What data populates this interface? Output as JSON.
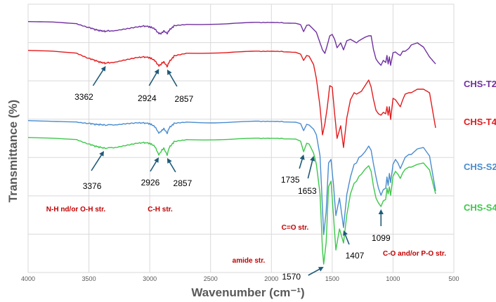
{
  "chart_data": {
    "type": "line",
    "title": "",
    "xlabel": "Wavenumber (cm⁻¹)",
    "ylabel": "Transmittance (%)",
    "xlim": [
      4000,
      500
    ],
    "x_ticks": [
      "4000",
      "3500",
      "3000",
      "2500",
      "2000",
      "1500",
      "1000",
      "500"
    ],
    "y_tick_values": false,
    "grid": true,
    "legend_position": "right",
    "colors": {
      "CHS-T2": "#7030a0",
      "CHS-T4": "#e31a1c",
      "CHS-S2": "#4a8ccf",
      "CHS-S4": "#3cc84a",
      "annotation": "#1f5a78",
      "group_label": "#c00000"
    },
    "series": [
      {
        "name": "CHS-T2",
        "offset": 31,
        "x": [
          4000,
          3800,
          3600,
          3500,
          3450,
          3400,
          3362,
          3300,
          3200,
          3100,
          3050,
          3000,
          2960,
          2924,
          2900,
          2885,
          2857,
          2840,
          2800,
          2700,
          2500,
          2300,
          2100,
          2000,
          1900,
          1800,
          1760,
          1735,
          1710,
          1690,
          1653,
          1630,
          1600,
          1580,
          1560,
          1540,
          1520,
          1500,
          1480,
          1460,
          1430,
          1407,
          1380,
          1350,
          1320,
          1300,
          1280,
          1260,
          1230,
          1200,
          1180,
          1160,
          1140,
          1120,
          1099,
          1080,
          1060,
          1050,
          1040,
          1030,
          1020,
          1000,
          980,
          960,
          940,
          920,
          900,
          870,
          850,
          800,
          750,
          700,
          650
        ],
        "values": [
          0,
          0.5,
          3,
          8,
          11,
          13,
          13.5,
          12.5,
          10,
          7.5,
          6,
          7,
          10,
          17,
          16,
          13,
          17,
          12,
          6,
          4,
          2.5,
          2,
          1.8,
          1.7,
          1.8,
          2.2,
          4,
          14,
          5,
          4.5,
          11,
          15,
          30,
          40,
          45,
          33,
          20,
          18,
          25,
          37,
          30,
          40,
          27,
          25,
          28,
          30,
          27,
          25,
          22,
          20,
          20,
          40,
          53,
          58,
          62,
          55,
          58,
          48,
          60,
          50,
          62,
          44,
          43,
          46,
          48,
          42,
          42,
          38,
          33,
          30,
          36,
          50,
          60
        ]
      },
      {
        "name": "CHS-T4",
        "offset": 72,
        "x": [
          4000,
          3800,
          3600,
          3500,
          3450,
          3400,
          3362,
          3300,
          3200,
          3100,
          3050,
          3000,
          2960,
          2924,
          2900,
          2885,
          2857,
          2840,
          2800,
          2700,
          2500,
          2300,
          2100,
          2000,
          1900,
          1800,
          1760,
          1735,
          1710,
          1690,
          1653,
          1630,
          1600,
          1580,
          1560,
          1540,
          1520,
          1500,
          1480,
          1460,
          1430,
          1407,
          1380,
          1350,
          1320,
          1300,
          1280,
          1260,
          1230,
          1200,
          1180,
          1160,
          1140,
          1120,
          1099,
          1080,
          1060,
          1050,
          1040,
          1030,
          1020,
          1000,
          980,
          960,
          940,
          920,
          900,
          870,
          850,
          800,
          750,
          700,
          650
        ],
        "values": [
          0,
          1,
          4,
          11,
          14,
          17,
          18,
          16.5,
          13,
          10,
          9,
          10,
          14,
          22,
          18,
          16,
          23,
          16,
          8,
          4,
          2.5,
          2,
          1.8,
          1.7,
          1.8,
          2.5,
          5,
          14,
          7,
          8,
          20,
          40,
          80,
          120,
          104,
          80,
          50,
          52,
          90,
          125,
          107,
          138,
          96,
          70,
          60,
          62,
          60,
          58,
          50,
          42,
          52,
          70,
          85,
          90,
          92,
          88,
          90,
          80,
          92,
          80,
          98,
          68,
          70,
          75,
          80,
          70,
          62,
          60,
          60,
          55,
          55,
          60,
          110
        ]
      },
      {
        "name": "CHS-S2",
        "offset": 172,
        "x": [
          4000,
          3800,
          3600,
          3500,
          3450,
          3400,
          3376,
          3300,
          3200,
          3100,
          3050,
          3000,
          2960,
          2926,
          2900,
          2885,
          2857,
          2840,
          2800,
          2700,
          2500,
          2300,
          2100,
          2000,
          1900,
          1800,
          1760,
          1735,
          1710,
          1690,
          1653,
          1630,
          1600,
          1580,
          1570,
          1550,
          1530,
          1510,
          1490,
          1470,
          1440,
          1407,
          1380,
          1350,
          1320,
          1300,
          1280,
          1260,
          1230,
          1200,
          1180,
          1160,
          1140,
          1120,
          1099,
          1080,
          1060,
          1050,
          1040,
          1030,
          1020,
          1000,
          980,
          960,
          940,
          920,
          900,
          870,
          850,
          800,
          750,
          700,
          650
        ],
        "values": [
          0,
          1,
          2,
          3.5,
          5,
          5.5,
          6,
          5.5,
          4,
          3,
          3,
          4,
          8,
          17,
          14,
          11,
          18,
          10,
          4,
          2,
          1.8,
          1.6,
          1.5,
          1.5,
          1.6,
          2,
          4,
          14,
          5,
          6,
          12,
          20,
          50,
          125,
          162,
          130,
          60,
          55,
          90,
          135,
          110,
          152,
          105,
          80,
          62,
          60,
          52,
          50,
          44,
          36,
          42,
          62,
          80,
          96,
          106,
          98,
          96,
          80,
          92,
          75,
          88,
          62,
          55,
          60,
          68,
          60,
          52,
          48,
          48,
          40,
          38,
          50,
          100
        ]
      },
      {
        "name": "CHS-S4",
        "offset": 196,
        "x": [
          4000,
          3800,
          3600,
          3500,
          3450,
          3400,
          3376,
          3300,
          3200,
          3100,
          3050,
          3000,
          2960,
          2926,
          2900,
          2885,
          2857,
          2840,
          2800,
          2700,
          2500,
          2300,
          2100,
          2000,
          1900,
          1800,
          1760,
          1735,
          1710,
          1690,
          1653,
          1630,
          1600,
          1580,
          1570,
          1550,
          1530,
          1510,
          1490,
          1470,
          1440,
          1407,
          1380,
          1350,
          1320,
          1300,
          1280,
          1260,
          1230,
          1200,
          1180,
          1160,
          1140,
          1120,
          1099,
          1080,
          1060,
          1050,
          1040,
          1030,
          1020,
          1000,
          980,
          960,
          940,
          920,
          900,
          870,
          850,
          800,
          750,
          700,
          650
        ],
        "values": [
          0,
          1,
          3,
          9,
          12,
          14,
          15,
          14,
          11,
          8,
          7,
          8,
          12,
          24,
          18,
          15,
          25,
          14,
          6,
          3,
          2,
          1.8,
          1.7,
          1.6,
          1.7,
          2,
          5,
          20,
          8,
          9,
          22,
          38,
          80,
          160,
          180,
          150,
          70,
          62,
          110,
          160,
          130,
          150,
          110,
          80,
          65,
          62,
          55,
          52,
          45,
          40,
          48,
          70,
          86,
          93,
          98,
          90,
          88,
          72,
          80,
          70,
          82,
          55,
          48,
          52,
          58,
          50,
          45,
          42,
          42,
          38,
          36,
          46,
          80
        ]
      }
    ],
    "annotations": [
      {
        "text": "3362",
        "x": 3362,
        "series": "CHS-T4"
      },
      {
        "text": "2924",
        "x": 2924,
        "series": "CHS-T4"
      },
      {
        "text": "2857",
        "x": 2857,
        "series": "CHS-T4"
      },
      {
        "text": "3376",
        "x": 3376,
        "series": "CHS-S4"
      },
      {
        "text": "2926",
        "x": 2926,
        "series": "CHS-S4"
      },
      {
        "text": "2857",
        "x": 2857,
        "series": "CHS-S4"
      },
      {
        "text": "1735",
        "x": 1735,
        "series": "CHS-S4"
      },
      {
        "text": "1653",
        "x": 1653,
        "series": "CHS-S4"
      },
      {
        "text": "1570",
        "x": 1570,
        "series": "CHS-S4"
      },
      {
        "text": "1407",
        "x": 1407,
        "series": "CHS-S2"
      },
      {
        "text": "1099",
        "x": 1099,
        "series": "CHS-S4"
      }
    ],
    "group_labels": [
      {
        "text": "N-H nd/or O-H str."
      },
      {
        "text": "C-H str."
      },
      {
        "text": "C=O str."
      },
      {
        "text": "amide str."
      },
      {
        "text": "C-O and/or P-O str."
      }
    ]
  }
}
